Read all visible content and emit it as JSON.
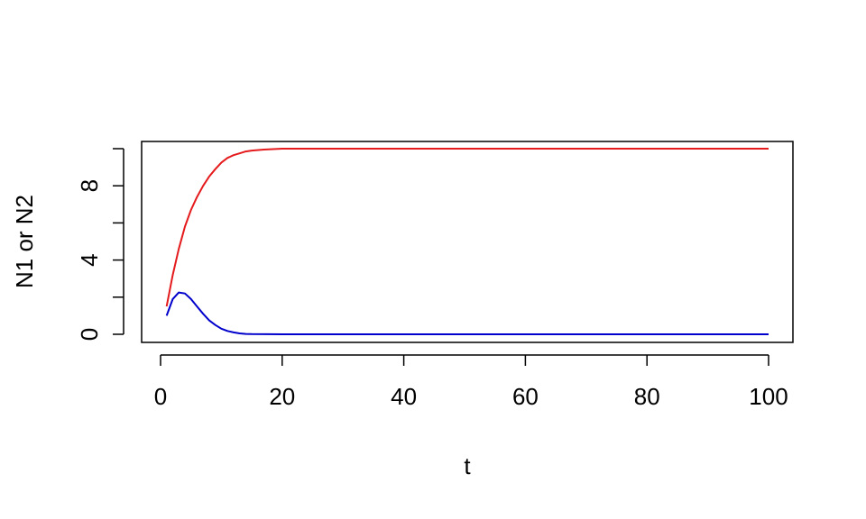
{
  "chart_data": {
    "type": "line",
    "title": "",
    "xlabel": "t",
    "ylabel": "N1 or N2",
    "xlim": [
      0,
      100
    ],
    "ylim": [
      0,
      10
    ],
    "x_ticks": [
      0,
      20,
      40,
      60,
      80,
      100
    ],
    "x_tick_labels": [
      "0",
      "20",
      "40",
      "60",
      "80",
      "100"
    ],
    "y_ticks": [
      0,
      2,
      4,
      6,
      8,
      10
    ],
    "y_labeled_ticks": [
      0,
      4,
      8
    ],
    "y_tick_labels": [
      "0",
      "4",
      "8"
    ],
    "grid": false,
    "series": [
      {
        "name": "N1",
        "color": "#e41a1c",
        "points": [
          [
            1,
            1.5
          ],
          [
            2,
            3.2
          ],
          [
            3,
            4.6
          ],
          [
            4,
            5.8
          ],
          [
            5,
            6.7
          ],
          [
            6,
            7.4
          ],
          [
            7,
            8.0
          ],
          [
            8,
            8.5
          ],
          [
            9,
            8.9
          ],
          [
            10,
            9.25
          ],
          [
            11,
            9.5
          ],
          [
            12,
            9.65
          ],
          [
            13,
            9.75
          ],
          [
            14,
            9.85
          ],
          [
            15,
            9.9
          ],
          [
            17,
            9.95
          ],
          [
            20,
            10.0
          ],
          [
            30,
            10.0
          ],
          [
            50,
            10.0
          ],
          [
            70,
            10.0
          ],
          [
            100,
            10.0
          ]
        ]
      },
      {
        "name": "N2",
        "color": "#0000cc",
        "points": [
          [
            1,
            1.0
          ],
          [
            2,
            1.9
          ],
          [
            3,
            2.25
          ],
          [
            4,
            2.2
          ],
          [
            5,
            1.9
          ],
          [
            6,
            1.5
          ],
          [
            7,
            1.1
          ],
          [
            8,
            0.75
          ],
          [
            9,
            0.5
          ],
          [
            10,
            0.3
          ],
          [
            11,
            0.18
          ],
          [
            12,
            0.1
          ],
          [
            13,
            0.05
          ],
          [
            14,
            0.02
          ],
          [
            15,
            0.01
          ],
          [
            20,
            0.0
          ],
          [
            30,
            0.0
          ],
          [
            50,
            0.0
          ],
          [
            70,
            0.0
          ],
          [
            100,
            0.0
          ]
        ]
      }
    ]
  }
}
